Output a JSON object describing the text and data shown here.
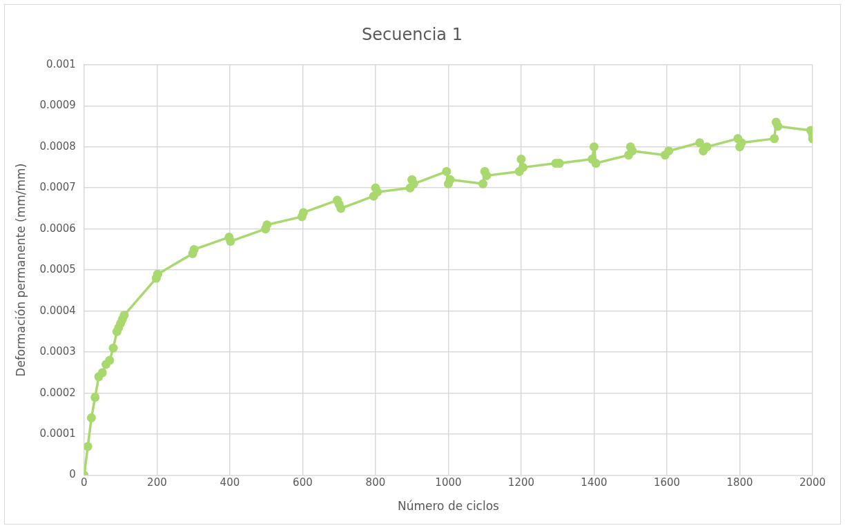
{
  "chart_data": {
    "type": "line",
    "title": "Secuencia 1",
    "xlabel": "Número de ciclos",
    "ylabel": "Deformación permanente (mm/mm)",
    "x": [
      0,
      10,
      20,
      30,
      40,
      50,
      60,
      70,
      80,
      90,
      95,
      100,
      105,
      110,
      198,
      202,
      298,
      302,
      398,
      402,
      498,
      502,
      598,
      602,
      695,
      700,
      705,
      795,
      800,
      805,
      895,
      900,
      905,
      995,
      1000,
      1005,
      1095,
      1100,
      1105,
      1195,
      1200,
      1205,
      1295,
      1305,
      1395,
      1400,
      1405,
      1495,
      1500,
      1505,
      1595,
      1605,
      1690,
      1700,
      1710,
      1795,
      1800,
      1805,
      1895,
      1900,
      1905,
      1995,
      2000,
      2000
    ],
    "series": [
      {
        "color": "#a9d86e",
        "values": [
          0,
          7e-05,
          0.00014,
          0.00019,
          0.00024,
          0.00025,
          0.00027,
          0.00028,
          0.00031,
          0.00035,
          0.00036,
          0.00037,
          0.00038,
          0.00039,
          0.00048,
          0.00049,
          0.00054,
          0.00055,
          0.00058,
          0.00057,
          0.0006,
          0.00061,
          0.00063,
          0.00064,
          0.00067,
          0.00066,
          0.00065,
          0.00068,
          0.0007,
          0.00069,
          0.0007,
          0.00072,
          0.00071,
          0.00074,
          0.00071,
          0.00072,
          0.00071,
          0.00074,
          0.00073,
          0.00074,
          0.00077,
          0.00075,
          0.00076,
          0.00076,
          0.00077,
          0.0008,
          0.00076,
          0.00078,
          0.0008,
          0.00079,
          0.00078,
          0.00079,
          0.00081,
          0.00079,
          0.0008,
          0.00082,
          0.0008,
          0.00081,
          0.00082,
          0.00086,
          0.00085,
          0.00084,
          0.00082,
          0.00083
        ]
      }
    ],
    "xlim": [
      0,
      2000
    ],
    "xticks": [
      0,
      200,
      400,
      600,
      800,
      1000,
      1200,
      1400,
      1600,
      1800,
      2000
    ],
    "ylim": [
      0,
      0.001
    ],
    "yticks": [
      0,
      0.0001,
      0.0002,
      0.0003,
      0.0004,
      0.0005,
      0.0006,
      0.0007,
      0.0008,
      0.0009,
      0.001
    ],
    "grid": true,
    "legend": false,
    "marker": "circle",
    "line_style": "solid"
  }
}
